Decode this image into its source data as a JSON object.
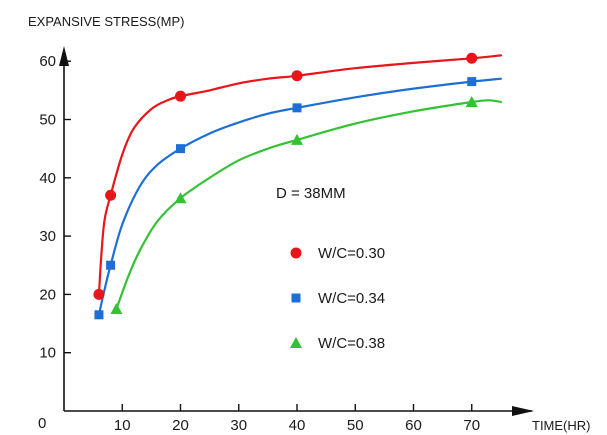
{
  "chart_data": {
    "type": "line",
    "ylabel": "EXPANSIVE STRESS(MP)",
    "xlabel": "TIME(HR)",
    "origin_label": "0",
    "xlim": [
      0,
      80
    ],
    "ylim": [
      0,
      65
    ],
    "x_ticks": [
      10,
      20,
      30,
      40,
      50,
      60,
      70
    ],
    "y_ticks": [
      10,
      20,
      30,
      40,
      50,
      60
    ],
    "grid": false,
    "annotation": "D = 38MM",
    "legend_position": "right-center",
    "series": [
      {
        "name": "W/C=0.30",
        "color": "#e8151b",
        "marker": "circle",
        "points": [
          [
            6,
            20
          ],
          [
            8,
            37
          ],
          [
            20,
            54
          ],
          [
            40,
            57.5
          ],
          [
            70,
            60.5
          ]
        ],
        "curve": [
          [
            6,
            20
          ],
          [
            6.5,
            28
          ],
          [
            7,
            33
          ],
          [
            8,
            37
          ],
          [
            10,
            44
          ],
          [
            12,
            48.5
          ],
          [
            15,
            51.8
          ],
          [
            18,
            53.4
          ],
          [
            20,
            54
          ],
          [
            25,
            55
          ],
          [
            30,
            56.2
          ],
          [
            35,
            57
          ],
          [
            40,
            57.5
          ],
          [
            50,
            58.8
          ],
          [
            60,
            59.7
          ],
          [
            70,
            60.5
          ],
          [
            75,
            61
          ]
        ]
      },
      {
        "name": "W/C=0.34",
        "color": "#1d6fd6",
        "marker": "square",
        "points": [
          [
            6,
            16.5
          ],
          [
            8,
            25
          ],
          [
            20,
            45
          ],
          [
            40,
            52
          ],
          [
            70,
            56.5
          ]
        ],
        "curve": [
          [
            6,
            16.5
          ],
          [
            7,
            21
          ],
          [
            8,
            25
          ],
          [
            10,
            32
          ],
          [
            13,
            38.5
          ],
          [
            16,
            42.2
          ],
          [
            20,
            45
          ],
          [
            25,
            47.6
          ],
          [
            30,
            49.5
          ],
          [
            35,
            51
          ],
          [
            40,
            52
          ],
          [
            50,
            53.8
          ],
          [
            60,
            55.3
          ],
          [
            70,
            56.5
          ],
          [
            75,
            57
          ]
        ]
      },
      {
        "name": "W/C=0.38",
        "color": "#33c233",
        "marker": "triangle",
        "points": [
          [
            9,
            17.5
          ],
          [
            20,
            36.5
          ],
          [
            40,
            46.5
          ],
          [
            70,
            53
          ]
        ],
        "curve": [
          [
            9,
            17.5
          ],
          [
            11,
            23
          ],
          [
            13,
            27.5
          ],
          [
            16,
            32.5
          ],
          [
            20,
            36.5
          ],
          [
            25,
            40
          ],
          [
            30,
            43
          ],
          [
            35,
            45
          ],
          [
            40,
            46.5
          ],
          [
            50,
            49.3
          ],
          [
            60,
            51.4
          ],
          [
            70,
            53
          ],
          [
            73,
            53.3
          ],
          [
            75,
            53
          ]
        ]
      }
    ]
  }
}
